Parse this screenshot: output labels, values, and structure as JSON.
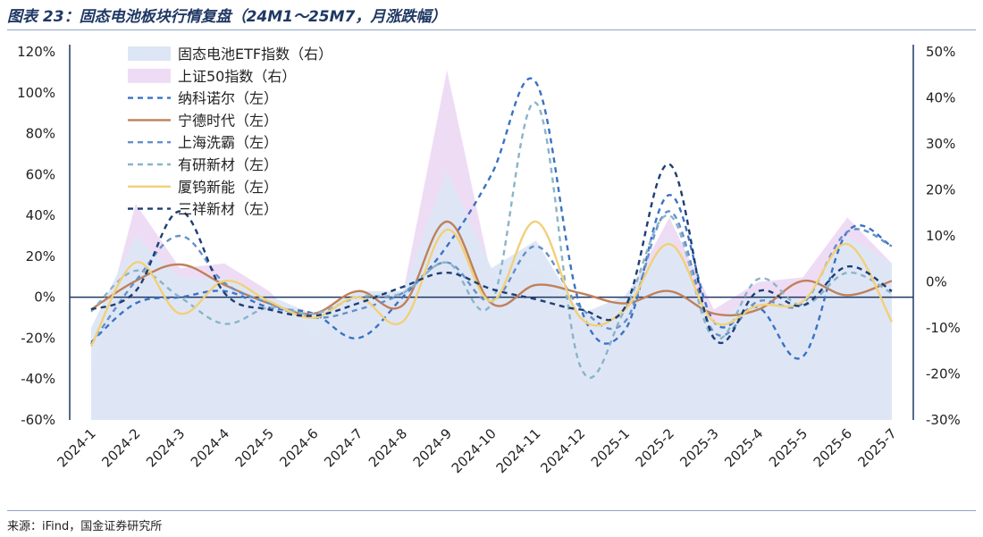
{
  "title": "图表 23：固态电池板块行情复盘（24M1～25M7，月涨跌幅）",
  "source": "来源：iFind，国金证券研究所",
  "chart_data": {
    "type": "line",
    "categories": [
      "2024-1",
      "2024-2",
      "2024-3",
      "2024-4",
      "2024-5",
      "2024-6",
      "2024-7",
      "2024-8",
      "2024-9",
      "2024-10",
      "2024-11",
      "2024-12",
      "2025-1",
      "2025-2",
      "2025-3",
      "2025-4",
      "2025-5",
      "2025-6",
      "2025-7"
    ],
    "left_axis": {
      "ylim": [
        -60,
        120
      ],
      "ticks": [
        "120%",
        "100%",
        "80%",
        "60%",
        "40%",
        "20%",
        "0%",
        "-20%",
        "-40%",
        "-60%"
      ]
    },
    "right_axis": {
      "ylim": [
        -30,
        50
      ],
      "ticks": [
        "50%",
        "40%",
        "30%",
        "20%",
        "10%",
        "0%",
        "-10%",
        "-20%",
        "-30%"
      ]
    },
    "area_series": [
      {
        "name": "固态电池ETF指数（右）",
        "axis": "right",
        "color": "#dce6f5",
        "values": [
          -10,
          10,
          1,
          1,
          -3,
          -7,
          -2,
          -2,
          24,
          3,
          9,
          -7,
          -3,
          10,
          -9,
          -2,
          -4,
          10,
          4
        ]
      },
      {
        "name": "上证50指数（右）",
        "axis": "right",
        "color": "#eedcf5",
        "values": [
          -20,
          17,
          3,
          4,
          -2,
          -12,
          -3,
          -3,
          46,
          1,
          3,
          -8,
          -4,
          14,
          -6,
          0,
          1,
          14,
          4
        ]
      }
    ],
    "series": [
      {
        "name": "纳科诺尔（左）",
        "axis": "left",
        "color": "#3a72c4",
        "dash": "6,5",
        "values": [
          -22,
          -3,
          0,
          3,
          -5,
          -8,
          -20,
          0,
          25,
          60,
          105,
          -5,
          -16,
          50,
          -12,
          -5,
          -29,
          32,
          25
        ]
      },
      {
        "name": "宁德时代（左）",
        "axis": "left",
        "color": "#c0805a",
        "dash": "",
        "values": [
          -6,
          8,
          16,
          6,
          -3,
          -8,
          3,
          -4,
          37,
          -3,
          6,
          2,
          -3,
          3,
          -8,
          -6,
          8,
          1,
          8
        ]
      },
      {
        "name": "上海洗霸（左）",
        "axis": "left",
        "color": "#6590c8",
        "dash": "6,5",
        "values": [
          -23,
          8,
          30,
          7,
          -3,
          -10,
          -6,
          2,
          17,
          -2,
          25,
          -5,
          -12,
          42,
          -17,
          -2,
          -3,
          32,
          25
        ]
      },
      {
        "name": "有研新材（左）",
        "axis": "left",
        "color": "#8ab4c8",
        "dash": "6,5",
        "values": [
          -7,
          13,
          0,
          -13,
          -5,
          -8,
          0,
          2,
          17,
          -3,
          95,
          -34,
          -6,
          40,
          -20,
          9,
          -4,
          12,
          2
        ]
      },
      {
        "name": "厦钨新能（左）",
        "axis": "left",
        "color": "#f2d078",
        "dash": "",
        "values": [
          -24,
          17,
          -8,
          8,
          -2,
          -10,
          0,
          -12,
          33,
          -2,
          37,
          -10,
          -6,
          26,
          -12,
          -4,
          -2,
          26,
          -12
        ]
      },
      {
        "name": "三祥新材（左）",
        "axis": "left",
        "color": "#1d3e74",
        "dash": "6,5",
        "values": [
          -6,
          3,
          42,
          2,
          -6,
          -9,
          -3,
          5,
          12,
          4,
          -1,
          -6,
          -5,
          65,
          -20,
          3,
          -4,
          15,
          3
        ]
      }
    ]
  }
}
